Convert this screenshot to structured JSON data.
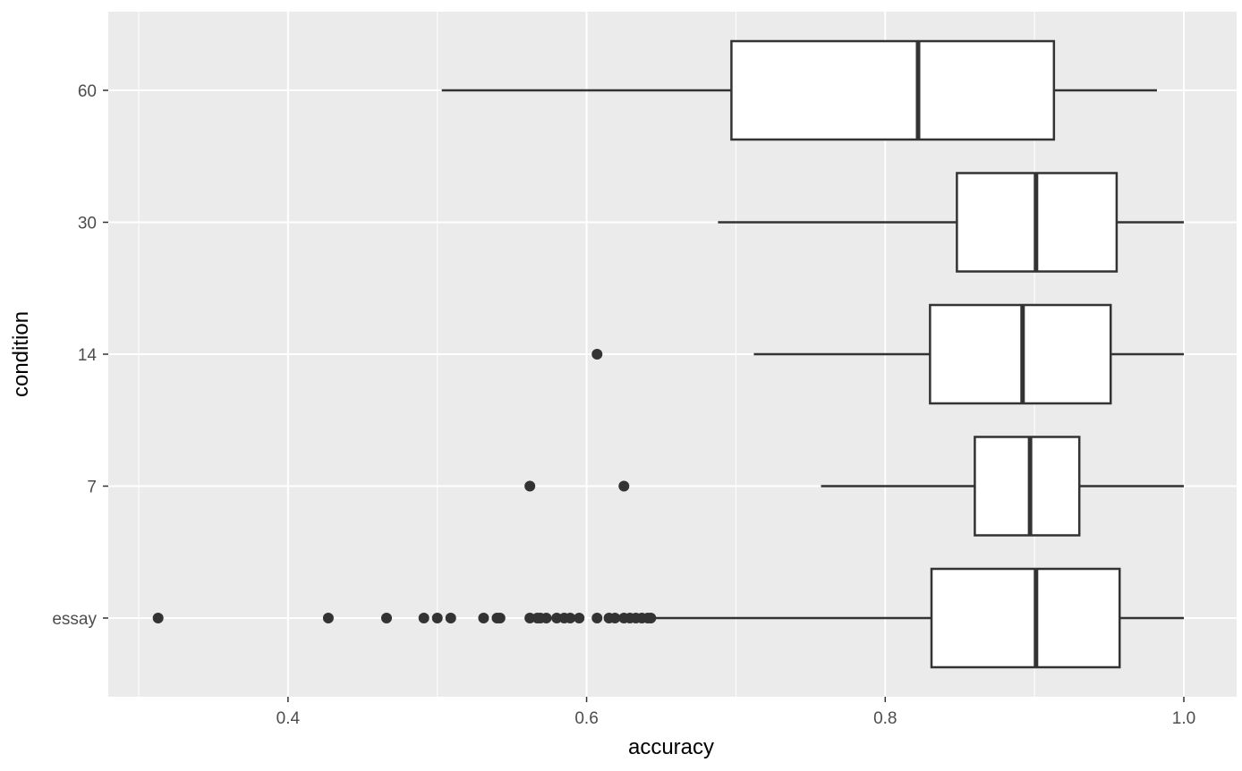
{
  "chart_data": {
    "type": "boxplot",
    "orientation": "horizontal",
    "xlabel": "accuracy",
    "ylabel": "condition",
    "xlim": [
      0.28,
      1.035
    ],
    "x_ticks": [
      0.4,
      0.6,
      0.8,
      1.0
    ],
    "x_tick_labels": [
      "0.4",
      "0.6",
      "0.8",
      "1.0"
    ],
    "x_minor_ticks": [
      0.3,
      0.5,
      0.7,
      0.9
    ],
    "grid": true,
    "colors": {
      "panel_background": "#ebebeb",
      "grid_line": "#ffffff",
      "box_fill": "#ffffff",
      "box_line": "#333333",
      "outlier": "#333333"
    },
    "categories": [
      "60",
      "30",
      "14",
      "7",
      "essay"
    ],
    "boxes": [
      {
        "category": "60",
        "whisker_low": 0.503,
        "q1": 0.697,
        "median": 0.822,
        "q3": 0.913,
        "whisker_high": 0.982,
        "outliers": []
      },
      {
        "category": "30",
        "whisker_low": 0.688,
        "q1": 0.848,
        "median": 0.901,
        "q3": 0.955,
        "whisker_high": 1.0,
        "outliers": []
      },
      {
        "category": "14",
        "whisker_low": 0.712,
        "q1": 0.83,
        "median": 0.892,
        "q3": 0.951,
        "whisker_high": 1.0,
        "outliers": [
          0.607
        ]
      },
      {
        "category": "7",
        "whisker_low": 0.757,
        "q1": 0.86,
        "median": 0.897,
        "q3": 0.93,
        "whisker_high": 1.0,
        "outliers": [
          0.562,
          0.625
        ]
      },
      {
        "category": "essay",
        "whisker_low": 0.643,
        "q1": 0.831,
        "median": 0.901,
        "q3": 0.957,
        "whisker_high": 1.0,
        "outliers": [
          0.313,
          0.427,
          0.466,
          0.491,
          0.5,
          0.509,
          0.531,
          0.54,
          0.542,
          0.562,
          0.567,
          0.569,
          0.573,
          0.58,
          0.585,
          0.589,
          0.595,
          0.607,
          0.615,
          0.619,
          0.625,
          0.629,
          0.633,
          0.637,
          0.641,
          0.643
        ]
      }
    ]
  }
}
